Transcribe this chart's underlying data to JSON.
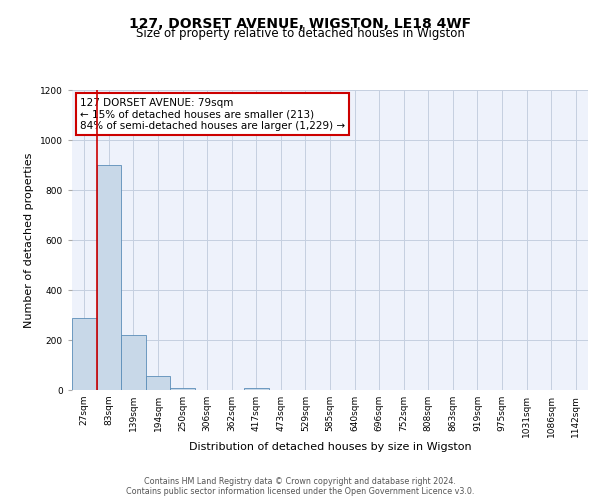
{
  "title_line1": "127, DORSET AVENUE, WIGSTON, LE18 4WF",
  "title_line2": "Size of property relative to detached houses in Wigston",
  "xlabel": "Distribution of detached houses by size in Wigston",
  "ylabel": "Number of detached properties",
  "bar_labels": [
    "27sqm",
    "83sqm",
    "139sqm",
    "194sqm",
    "250sqm",
    "306sqm",
    "362sqm",
    "417sqm",
    "473sqm",
    "529sqm",
    "585sqm",
    "640sqm",
    "696sqm",
    "752sqm",
    "808sqm",
    "863sqm",
    "919sqm",
    "975sqm",
    "1031sqm",
    "1086sqm",
    "1142sqm"
  ],
  "bar_values": [
    290,
    900,
    220,
    55,
    10,
    0,
    0,
    10,
    0,
    0,
    0,
    0,
    0,
    0,
    0,
    0,
    0,
    0,
    0,
    0,
    0
  ],
  "bar_color": "#c8d8e8",
  "bar_edge_color": "#5b8db8",
  "ylim": [
    0,
    1200
  ],
  "yticks": [
    0,
    200,
    400,
    600,
    800,
    1000,
    1200
  ],
  "annotation_title": "127 DORSET AVENUE: 79sqm",
  "annotation_line2": "← 15% of detached houses are smaller (213)",
  "annotation_line3": "84% of semi-detached houses are larger (1,229) →",
  "red_line_x": 1,
  "box_color": "#cc0000",
  "footer_line1": "Contains HM Land Registry data © Crown copyright and database right 2024.",
  "footer_line2": "Contains public sector information licensed under the Open Government Licence v3.0.",
  "background_color": "#eef2fb",
  "grid_color": "#c5cfe0",
  "title_fontsize": 10,
  "subtitle_fontsize": 8.5,
  "axis_label_fontsize": 8,
  "tick_fontsize": 6.5,
  "annotation_fontsize": 7.5,
  "footer_fontsize": 5.8
}
